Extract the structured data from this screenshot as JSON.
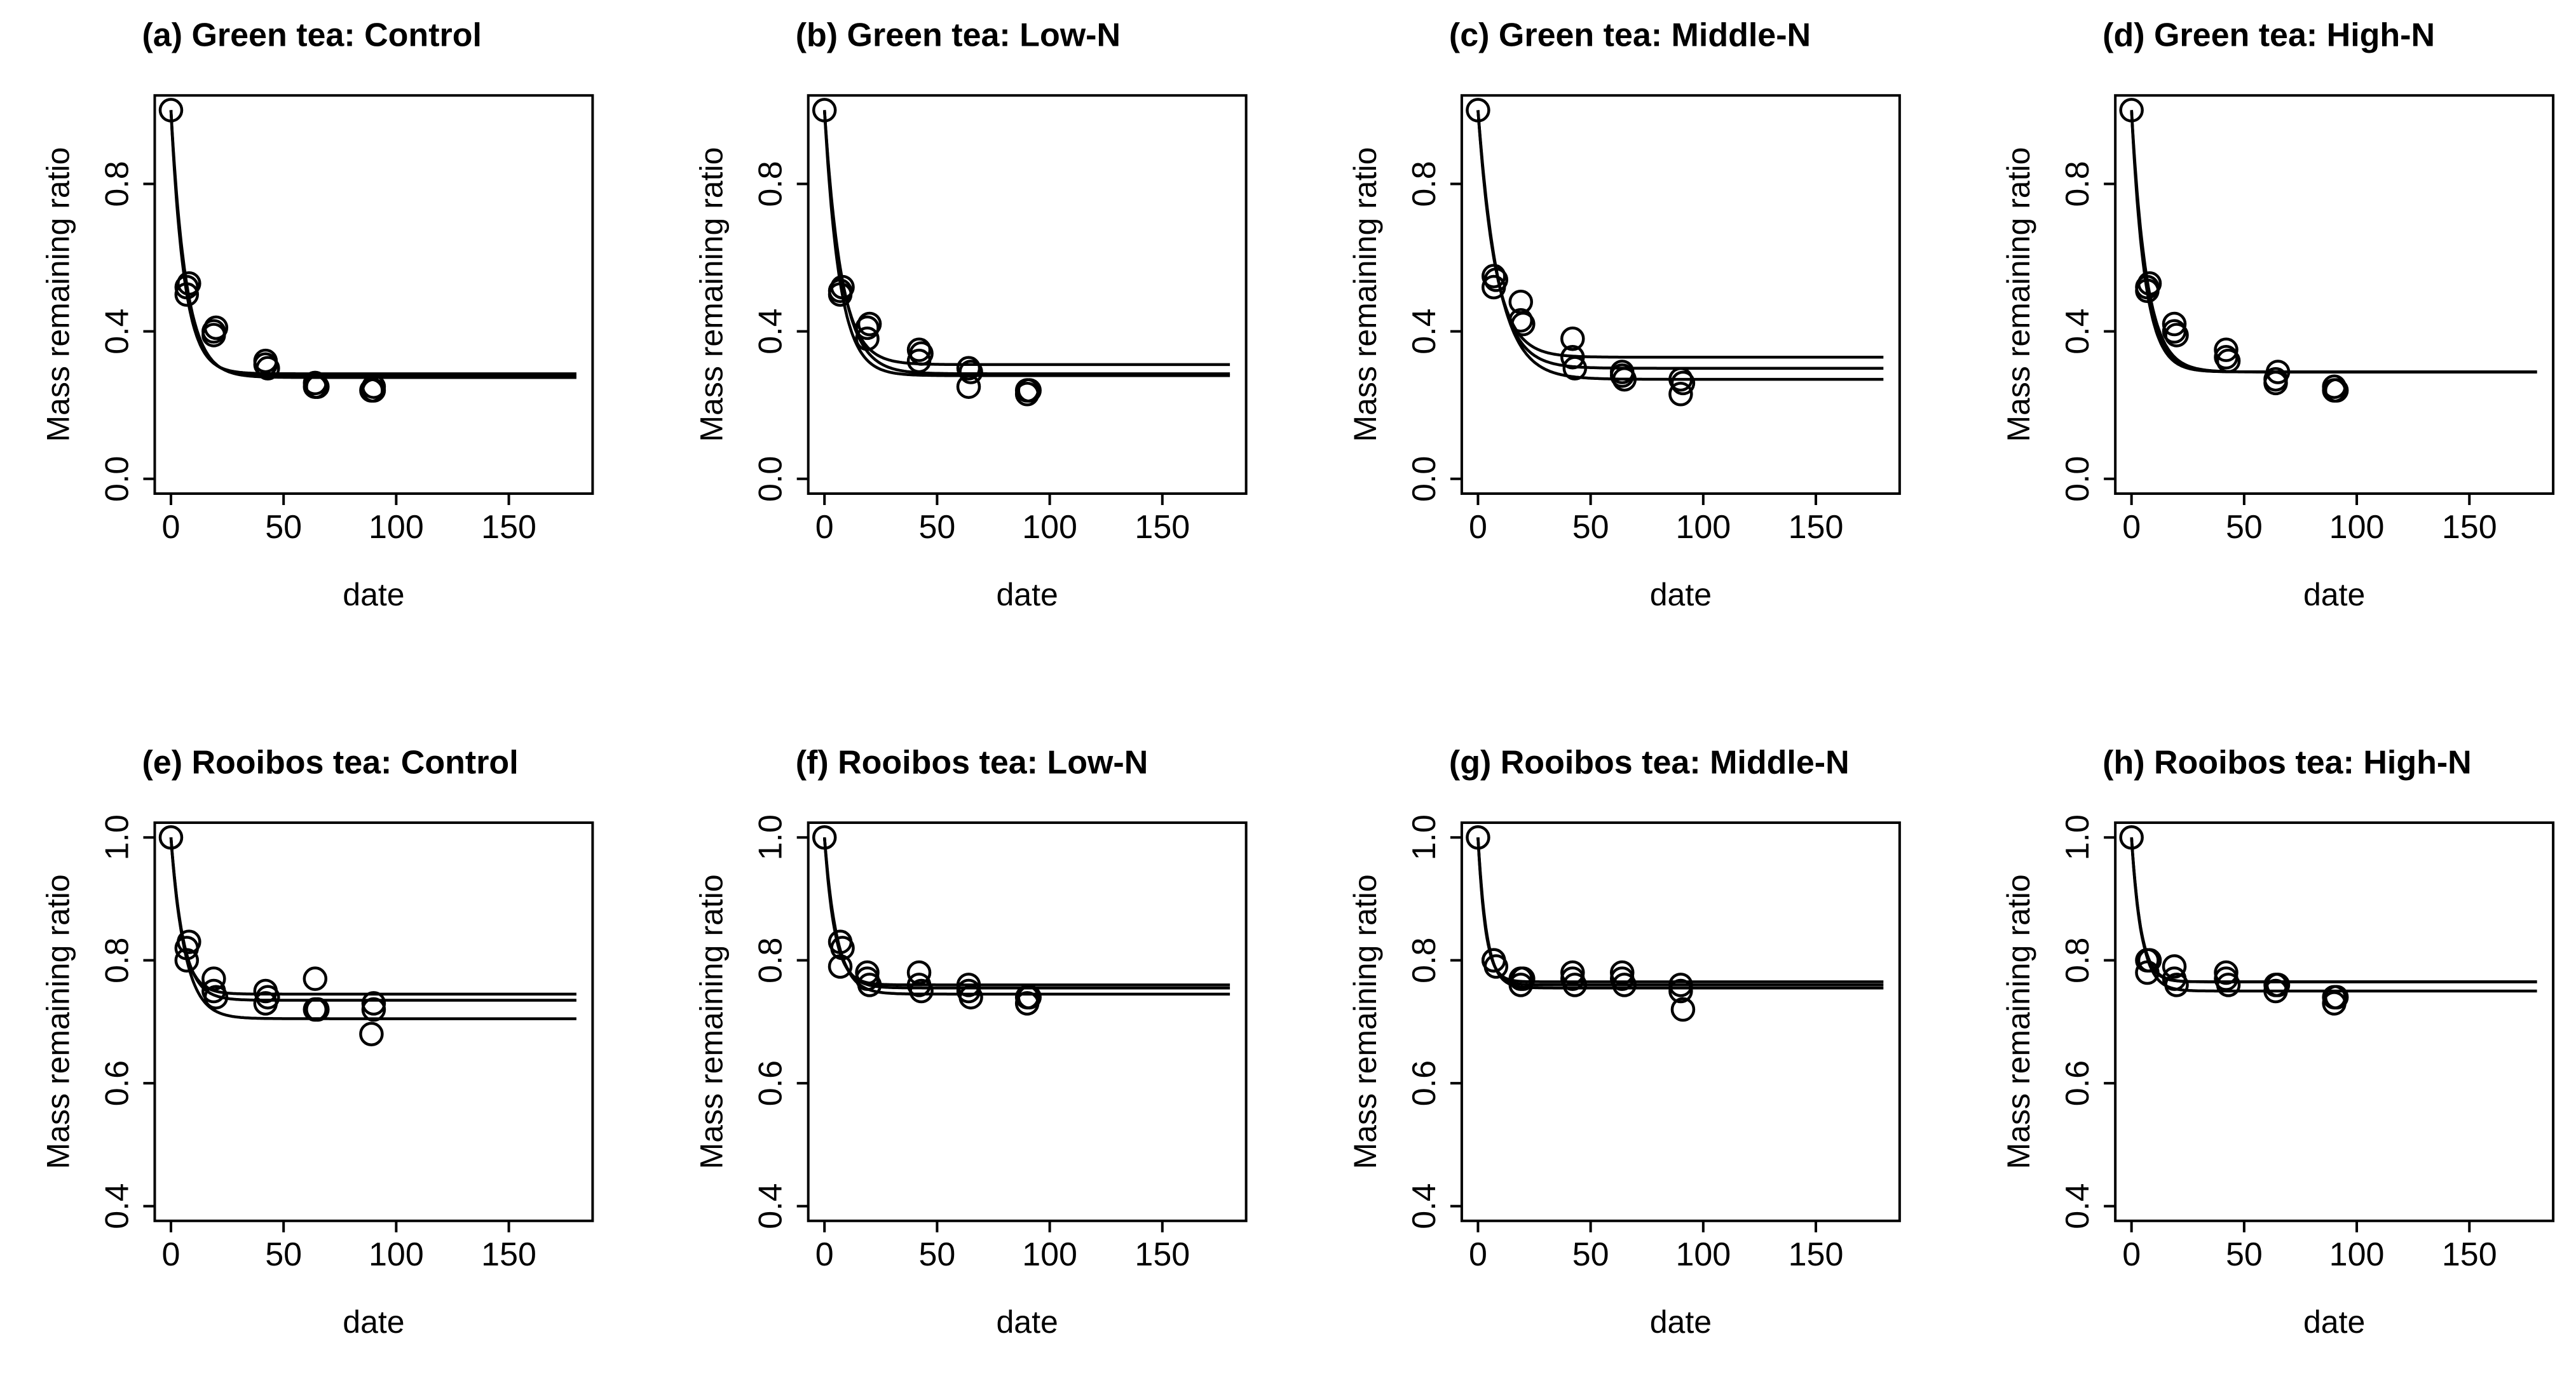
{
  "chart_data": [
    {
      "type": "scatter",
      "label": "(a)",
      "title": "Green tea: Control",
      "xlabel": "date",
      "ylabel": "Mass remaining ratio",
      "xlim": [
        0,
        180
      ],
      "ylim": [
        0,
        1
      ],
      "xticks": [
        "0",
        "50",
        "100",
        "150"
      ],
      "yticks": [
        {
          "value": 0,
          "label": "0.0"
        },
        {
          "value": 0.4,
          "label": "0.4"
        },
        {
          "value": 0.8,
          "label": "0.8"
        }
      ],
      "points": [
        {
          "x": 0,
          "y": 1.0
        },
        {
          "x": 7,
          "y": 0.52
        },
        {
          "x": 7,
          "y": 0.5
        },
        {
          "x": 8,
          "y": 0.53
        },
        {
          "x": 19,
          "y": 0.4
        },
        {
          "x": 19,
          "y": 0.39
        },
        {
          "x": 20,
          "y": 0.41
        },
        {
          "x": 42,
          "y": 0.31
        },
        {
          "x": 42,
          "y": 0.32
        },
        {
          "x": 43,
          "y": 0.3
        },
        {
          "x": 64,
          "y": 0.25
        },
        {
          "x": 64,
          "y": 0.26
        },
        {
          "x": 65,
          "y": 0.25
        },
        {
          "x": 89,
          "y": 0.24
        },
        {
          "x": 90,
          "y": 0.25
        },
        {
          "x": 90,
          "y": 0.24
        }
      ],
      "fits": [
        {
          "k": 0.16,
          "a": 0.28
        },
        {
          "k": 0.15,
          "a": 0.275
        },
        {
          "k": 0.17,
          "a": 0.285
        }
      ]
    },
    {
      "type": "scatter",
      "label": "(b)",
      "title": "Green tea: Low-N",
      "xlabel": "date",
      "ylabel": "Mass remaining ratio",
      "xlim": [
        0,
        180
      ],
      "ylim": [
        0,
        1
      ],
      "xticks": [
        "0",
        "50",
        "100",
        "150"
      ],
      "yticks": [
        {
          "value": 0,
          "label": "0.0"
        },
        {
          "value": 0.4,
          "label": "0.4"
        },
        {
          "value": 0.8,
          "label": "0.8"
        }
      ],
      "points": [
        {
          "x": 0,
          "y": 1.0
        },
        {
          "x": 7,
          "y": 0.51
        },
        {
          "x": 7,
          "y": 0.5
        },
        {
          "x": 8,
          "y": 0.52
        },
        {
          "x": 19,
          "y": 0.41
        },
        {
          "x": 19,
          "y": 0.38
        },
        {
          "x": 20,
          "y": 0.42
        },
        {
          "x": 42,
          "y": 0.32
        },
        {
          "x": 42,
          "y": 0.35
        },
        {
          "x": 43,
          "y": 0.34
        },
        {
          "x": 64,
          "y": 0.25
        },
        {
          "x": 64,
          "y": 0.3
        },
        {
          "x": 65,
          "y": 0.29
        },
        {
          "x": 90,
          "y": 0.23
        },
        {
          "x": 90,
          "y": 0.24
        },
        {
          "x": 91,
          "y": 0.24
        }
      ],
      "fits": [
        {
          "k": 0.14,
          "a": 0.31
        },
        {
          "k": 0.13,
          "a": 0.285
        },
        {
          "k": 0.15,
          "a": 0.28
        }
      ]
    },
    {
      "type": "scatter",
      "label": "(c)",
      "title": "Green tea: Middle-N",
      "xlabel": "date",
      "ylabel": "Mass remaining ratio",
      "xlim": [
        0,
        180
      ],
      "ylim": [
        0,
        1
      ],
      "xticks": [
        "0",
        "50",
        "100",
        "150"
      ],
      "yticks": [
        {
          "value": 0,
          "label": "0.0"
        },
        {
          "value": 0.4,
          "label": "0.4"
        },
        {
          "value": 0.8,
          "label": "0.8"
        }
      ],
      "points": [
        {
          "x": 0,
          "y": 1.0
        },
        {
          "x": 7,
          "y": 0.55
        },
        {
          "x": 7,
          "y": 0.52
        },
        {
          "x": 8,
          "y": 0.54
        },
        {
          "x": 19,
          "y": 0.48
        },
        {
          "x": 19,
          "y": 0.43
        },
        {
          "x": 20,
          "y": 0.42
        },
        {
          "x": 42,
          "y": 0.38
        },
        {
          "x": 42,
          "y": 0.33
        },
        {
          "x": 43,
          "y": 0.3
        },
        {
          "x": 64,
          "y": 0.28
        },
        {
          "x": 64,
          "y": 0.29
        },
        {
          "x": 65,
          "y": 0.27
        },
        {
          "x": 90,
          "y": 0.23
        },
        {
          "x": 90,
          "y": 0.27
        },
        {
          "x": 91,
          "y": 0.26
        }
      ],
      "fits": [
        {
          "k": 0.13,
          "a": 0.33
        },
        {
          "k": 0.12,
          "a": 0.3
        },
        {
          "k": 0.11,
          "a": 0.27
        }
      ]
    },
    {
      "type": "scatter",
      "label": "(d)",
      "title": "Green tea: High-N",
      "xlabel": "date",
      "ylabel": "Mass remaining ratio",
      "xlim": [
        0,
        180
      ],
      "ylim": [
        0,
        1
      ],
      "xticks": [
        "0",
        "50",
        "100",
        "150"
      ],
      "yticks": [
        {
          "value": 0,
          "label": "0.0"
        },
        {
          "value": 0.4,
          "label": "0.4"
        },
        {
          "value": 0.8,
          "label": "0.8"
        }
      ],
      "points": [
        {
          "x": 0,
          "y": 1.0
        },
        {
          "x": 7,
          "y": 0.52
        },
        {
          "x": 7,
          "y": 0.51
        },
        {
          "x": 8,
          "y": 0.53
        },
        {
          "x": 19,
          "y": 0.42
        },
        {
          "x": 19,
          "y": 0.4
        },
        {
          "x": 20,
          "y": 0.39
        },
        {
          "x": 42,
          "y": 0.35
        },
        {
          "x": 42,
          "y": 0.33
        },
        {
          "x": 43,
          "y": 0.32
        },
        {
          "x": 64,
          "y": 0.26
        },
        {
          "x": 64,
          "y": 0.27
        },
        {
          "x": 65,
          "y": 0.29
        },
        {
          "x": 90,
          "y": 0.24
        },
        {
          "x": 90,
          "y": 0.25
        },
        {
          "x": 91,
          "y": 0.24
        }
      ],
      "fits": [
        {
          "k": 0.16,
          "a": 0.29
        },
        {
          "k": 0.15,
          "a": 0.29
        },
        {
          "k": 0.17,
          "a": 0.29
        }
      ]
    },
    {
      "type": "scatter",
      "label": "(e)",
      "title": "Rooibos tea: Control",
      "xlabel": "date",
      "ylabel": "Mass remaining ratio",
      "xlim": [
        0,
        180
      ],
      "ylim": [
        0.4,
        1
      ],
      "xticks": [
        "0",
        "50",
        "100",
        "150"
      ],
      "yticks": [
        {
          "value": 0.4,
          "label": "0.4"
        },
        {
          "value": 0.6,
          "label": "0.6"
        },
        {
          "value": 0.8,
          "label": "0.8"
        },
        {
          "value": 1.0,
          "label": "1.0"
        }
      ],
      "points": [
        {
          "x": 0,
          "y": 1.0
        },
        {
          "x": 7,
          "y": 0.82
        },
        {
          "x": 7,
          "y": 0.8
        },
        {
          "x": 8,
          "y": 0.83
        },
        {
          "x": 19,
          "y": 0.77
        },
        {
          "x": 19,
          "y": 0.75
        },
        {
          "x": 20,
          "y": 0.74
        },
        {
          "x": 42,
          "y": 0.75
        },
        {
          "x": 42,
          "y": 0.73
        },
        {
          "x": 43,
          "y": 0.74
        },
        {
          "x": 64,
          "y": 0.77
        },
        {
          "x": 64,
          "y": 0.72
        },
        {
          "x": 65,
          "y": 0.72
        },
        {
          "x": 89,
          "y": 0.68
        },
        {
          "x": 90,
          "y": 0.73
        },
        {
          "x": 90,
          "y": 0.72
        }
      ],
      "fits": [
        {
          "k": 0.2,
          "a": 0.745
        },
        {
          "k": 0.18,
          "a": 0.735
        },
        {
          "k": 0.16,
          "a": 0.705
        }
      ]
    },
    {
      "type": "scatter",
      "label": "(f)",
      "title": "Rooibos tea: Low-N",
      "xlabel": "date",
      "ylabel": "Mass remaining ratio",
      "xlim": [
        0,
        180
      ],
      "ylim": [
        0.4,
        1
      ],
      "xticks": [
        "0",
        "50",
        "100",
        "150"
      ],
      "yticks": [
        {
          "value": 0.4,
          "label": "0.4"
        },
        {
          "value": 0.6,
          "label": "0.6"
        },
        {
          "value": 0.8,
          "label": "0.8"
        },
        {
          "value": 1.0,
          "label": "1.0"
        }
      ],
      "points": [
        {
          "x": 0,
          "y": 1.0
        },
        {
          "x": 7,
          "y": 0.83
        },
        {
          "x": 7,
          "y": 0.79
        },
        {
          "x": 8,
          "y": 0.82
        },
        {
          "x": 19,
          "y": 0.78
        },
        {
          "x": 19,
          "y": 0.77
        },
        {
          "x": 20,
          "y": 0.76
        },
        {
          "x": 42,
          "y": 0.78
        },
        {
          "x": 42,
          "y": 0.76
        },
        {
          "x": 43,
          "y": 0.75
        },
        {
          "x": 64,
          "y": 0.76
        },
        {
          "x": 64,
          "y": 0.75
        },
        {
          "x": 65,
          "y": 0.74
        },
        {
          "x": 90,
          "y": 0.74
        },
        {
          "x": 90,
          "y": 0.73
        },
        {
          "x": 91,
          "y": 0.74
        }
      ],
      "fits": [
        {
          "k": 0.22,
          "a": 0.76
        },
        {
          "k": 0.2,
          "a": 0.755
        },
        {
          "k": 0.18,
          "a": 0.745
        }
      ]
    },
    {
      "type": "scatter",
      "label": "(g)",
      "title": "Rooibos tea: Middle-N",
      "xlabel": "date",
      "ylabel": "Mass remaining ratio",
      "xlim": [
        0,
        180
      ],
      "ylim": [
        0.4,
        1
      ],
      "xticks": [
        "0",
        "50",
        "100",
        "150"
      ],
      "yticks": [
        {
          "value": 0.4,
          "label": "0.4"
        },
        {
          "value": 0.6,
          "label": "0.6"
        },
        {
          "value": 0.8,
          "label": "0.8"
        },
        {
          "value": 1.0,
          "label": "1.0"
        }
      ],
      "points": [
        {
          "x": 0,
          "y": 1.0
        },
        {
          "x": 7,
          "y": 0.8
        },
        {
          "x": 7,
          "y": 0.8
        },
        {
          "x": 8,
          "y": 0.79
        },
        {
          "x": 19,
          "y": 0.77
        },
        {
          "x": 19,
          "y": 0.76
        },
        {
          "x": 20,
          "y": 0.77
        },
        {
          "x": 42,
          "y": 0.78
        },
        {
          "x": 42,
          "y": 0.77
        },
        {
          "x": 43,
          "y": 0.76
        },
        {
          "x": 64,
          "y": 0.78
        },
        {
          "x": 64,
          "y": 0.77
        },
        {
          "x": 65,
          "y": 0.76
        },
        {
          "x": 90,
          "y": 0.76
        },
        {
          "x": 90,
          "y": 0.75
        },
        {
          "x": 91,
          "y": 0.72
        }
      ],
      "fits": [
        {
          "k": 0.3,
          "a": 0.765
        },
        {
          "k": 0.28,
          "a": 0.76
        },
        {
          "k": 0.26,
          "a": 0.755
        }
      ]
    },
    {
      "type": "scatter",
      "label": "(h)",
      "title": "Rooibos tea: High-N",
      "xlabel": "date",
      "ylabel": "Mass remaining ratio",
      "xlim": [
        0,
        180
      ],
      "ylim": [
        0.4,
        1
      ],
      "xticks": [
        "0",
        "50",
        "100",
        "150"
      ],
      "yticks": [
        {
          "value": 0.4,
          "label": "0.4"
        },
        {
          "value": 0.6,
          "label": "0.6"
        },
        {
          "value": 0.8,
          "label": "0.8"
        },
        {
          "value": 1.0,
          "label": "1.0"
        }
      ],
      "points": [
        {
          "x": 0,
          "y": 1.0
        },
        {
          "x": 7,
          "y": 0.8
        },
        {
          "x": 7,
          "y": 0.78
        },
        {
          "x": 8,
          "y": 0.8
        },
        {
          "x": 19,
          "y": 0.79
        },
        {
          "x": 19,
          "y": 0.77
        },
        {
          "x": 20,
          "y": 0.76
        },
        {
          "x": 42,
          "y": 0.78
        },
        {
          "x": 42,
          "y": 0.77
        },
        {
          "x": 43,
          "y": 0.76
        },
        {
          "x": 64,
          "y": 0.76
        },
        {
          "x": 64,
          "y": 0.75
        },
        {
          "x": 65,
          "y": 0.76
        },
        {
          "x": 90,
          "y": 0.74
        },
        {
          "x": 90,
          "y": 0.73
        },
        {
          "x": 91,
          "y": 0.74
        }
      ],
      "fits": [
        {
          "k": 0.25,
          "a": 0.765
        },
        {
          "k": 0.22,
          "a": 0.75
        },
        {
          "k": 0.24,
          "a": 0.765
        }
      ]
    }
  ]
}
